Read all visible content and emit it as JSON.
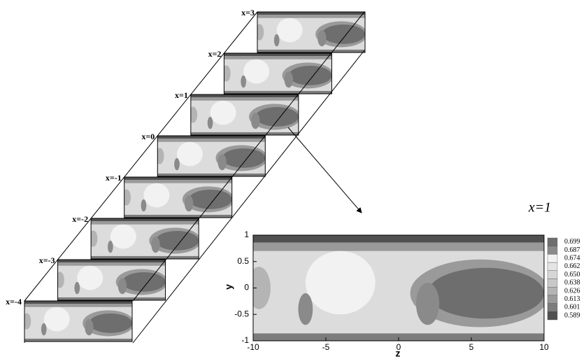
{
  "chart_data": {
    "type": "contour",
    "slice_labels": [
      "x=3",
      "x=2",
      "x=1",
      "x=0",
      "x=-1",
      "x=-2",
      "x=-3",
      "x=-4"
    ],
    "title": "x=1",
    "xlabel": "z",
    "ylabel": "y",
    "xlim": [
      -10,
      10
    ],
    "xticks": [
      -10,
      -5,
      0,
      5,
      10
    ],
    "ylim": [
      -1,
      1
    ],
    "yticks": [
      1,
      0.5,
      0,
      -0.5,
      -1
    ],
    "colorbar": {
      "levels": [
        0.699,
        0.687,
        {
          "value": 0.674,
          "label": "0.674"
        },
        0.662,
        {
          "value": 0.65,
          "label": "0.650"
        },
        0.638,
        0.626,
        0.613,
        0.601,
        0.589
      ],
      "colors": [
        "#6e6e6e",
        "#8a8a8a",
        "#f2f2f2",
        "#e4e4e4",
        "#d6d6d6",
        "#c8c8c8",
        "#b4b4b4",
        "#9a9a9a",
        "#7c7c7c",
        "#505050"
      ]
    }
  }
}
